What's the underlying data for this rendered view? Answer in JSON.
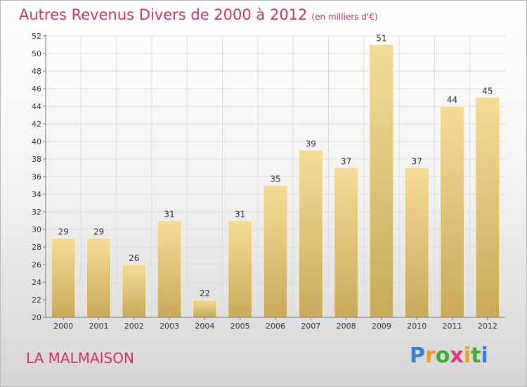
{
  "chart_data": {
    "type": "bar",
    "title": "Autres Revenus Divers de 2000 à 2012",
    "subtitle": "(en milliers d'€)",
    "categories": [
      "2000",
      "2001",
      "2002",
      "2003",
      "2004",
      "2005",
      "2006",
      "2007",
      "2008",
      "2009",
      "2010",
      "2011",
      "2012"
    ],
    "values": [
      29,
      29,
      26,
      31,
      22,
      31,
      35,
      39,
      37,
      51,
      37,
      44,
      45
    ],
    "ylim": [
      20,
      52
    ],
    "yticks": [
      20,
      22,
      24,
      26,
      28,
      30,
      32,
      34,
      36,
      38,
      40,
      42,
      44,
      46,
      48,
      50,
      52
    ],
    "grid": true,
    "bar_color_top": "#f5dc96",
    "bar_color_bottom": "#c9aa5c"
  },
  "place_name": "LA MALMAISON",
  "logo": {
    "letters": [
      "P",
      "r",
      "o",
      "x",
      "i",
      "t",
      "i"
    ],
    "colors": [
      "#3a7fd0",
      "#f0a020",
      "#44aa33",
      "#e23a7c",
      "#f0a020",
      "#44aa33",
      "#3a7fd0"
    ]
  }
}
